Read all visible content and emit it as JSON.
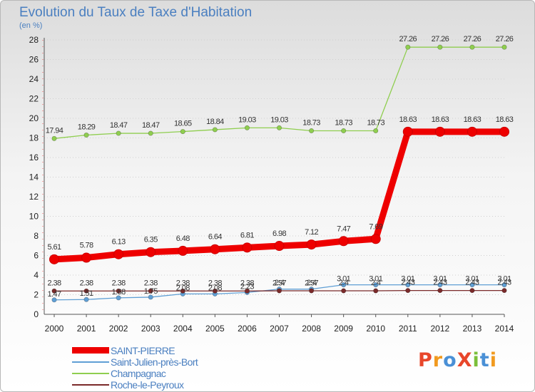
{
  "title": "Evolution du Taux de Taxe d'Habitation",
  "unit": "(en %)",
  "colors": {
    "saint_pierre": "#ee0000",
    "saint_julien": "#5f9fd5",
    "champagnac": "#8fce4f",
    "roche": "#7a2a2a",
    "axis_text": "#222222",
    "label_text": "#333333"
  },
  "logo": {
    "text": "ProXiti",
    "colors": [
      "#e8462a",
      "#f19a1f",
      "#4a90d6",
      "#e8462a",
      "#7bbf3a",
      "#4a90d6",
      "#f19a1f"
    ]
  },
  "chart_data": {
    "type": "line",
    "title": "Evolution du Taux de Taxe d'Habitation",
    "ylabel": "(en %)",
    "xlabel": "",
    "x": [
      "2000",
      "2001",
      "2002",
      "2003",
      "2004",
      "2005",
      "2006",
      "2007",
      "2008",
      "2009",
      "2010",
      "2011",
      "2012",
      "2013",
      "2014"
    ],
    "ylim": [
      0,
      28
    ],
    "yticks": [
      0,
      2,
      4,
      6,
      8,
      10,
      12,
      14,
      16,
      18,
      20,
      22,
      24,
      26,
      28
    ],
    "grid": "horizontal dotted",
    "legend_position": "bottom-left",
    "series": [
      {
        "name": "SAINT-PIERRE",
        "color": "#ee0000",
        "width": "thick",
        "values": [
          5.61,
          5.78,
          6.13,
          6.35,
          6.48,
          6.64,
          6.81,
          6.98,
          7.12,
          7.47,
          7.69,
          18.63,
          18.63,
          18.63,
          18.63
        ],
        "labels": [
          "5.61",
          "5.78",
          "6.13",
          "6.35",
          "6.48",
          "6.64",
          "6.81",
          "6.98",
          "7.12",
          "7.47",
          "7.69",
          "18.63",
          "18.63",
          "18.63",
          "18.63"
        ]
      },
      {
        "name": "Saint-Julien-près-Bort",
        "color": "#5f9fd5",
        "width": "thin",
        "values": [
          1.47,
          1.51,
          1.68,
          1.75,
          2.08,
          2.08,
          2.23,
          2.57,
          2.57,
          3.01,
          3.01,
          3.01,
          3.01,
          3.01,
          3.01
        ],
        "labels": [
          "1.47",
          "1.51",
          "1.68",
          "1.75",
          "2.08",
          "2.08",
          "2.23",
          "2.57",
          "2.57",
          "3.01",
          "3.01",
          "3.01",
          "3.01",
          "3.01",
          "3.01"
        ]
      },
      {
        "name": "Champagnac",
        "color": "#8fce4f",
        "width": "thin",
        "values": [
          17.94,
          18.29,
          18.47,
          18.47,
          18.65,
          18.84,
          19.03,
          19.03,
          18.73,
          18.73,
          18.73,
          27.26,
          27.26,
          27.26,
          27.26
        ],
        "labels": [
          "17.94",
          "18.29",
          "18.47",
          "18.47",
          "18.65",
          "18.84",
          "19.03",
          "19.03",
          "18.73",
          "18.73",
          "18.73",
          "27.26",
          "27.26",
          "27.26",
          "27.26"
        ]
      },
      {
        "name": "Roche-le-Peyroux",
        "color": "#7a2a2a",
        "width": "thin",
        "values": [
          2.38,
          2.38,
          2.38,
          2.38,
          2.38,
          2.38,
          2.38,
          2.4,
          2.4,
          2.4,
          2.4,
          2.43,
          2.43,
          2.43,
          2.43
        ],
        "labels": [
          "2.38",
          "2.38",
          "2.38",
          "2.38",
          "2.38",
          "2.38",
          "2.38",
          "2.4",
          "2.4",
          "2.4",
          "2.4",
          "2.43",
          "2.43",
          "2.43",
          "2.43"
        ]
      }
    ]
  }
}
